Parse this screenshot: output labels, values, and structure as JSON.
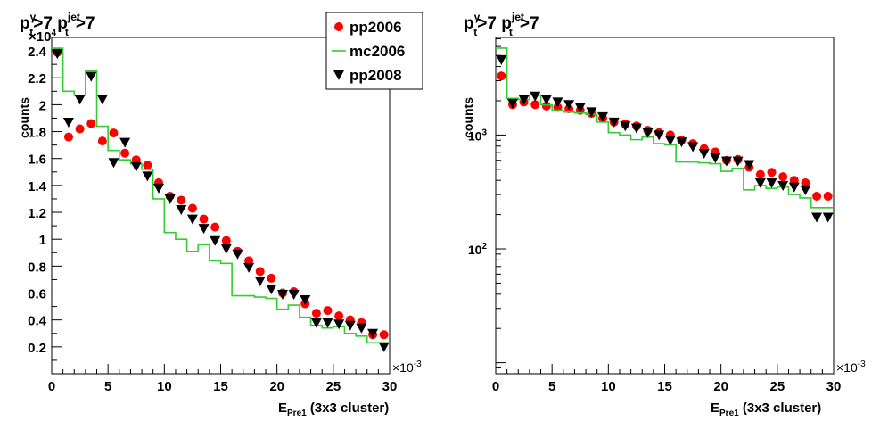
{
  "chart_data": [
    {
      "type": "scatter",
      "title_main": "p",
      "title_sup1": "γ",
      "title_sub1": "t",
      "title_mid": ">7 p",
      "title_sup2": "jet",
      "title_sub2": "t",
      "title_end": ">7",
      "ylabel": "counts",
      "xlabel_main": "E",
      "xlabel_sub": "Pre1",
      "xlabel_rest": " (3x3 cluster)",
      "x_multiplier": "×10",
      "x_multiplier_exp": "-3",
      "y_multiplier": "×10",
      "y_multiplier_exp": "4",
      "y_scale": "linear",
      "xlim": [
        0,
        30
      ],
      "ylim": [
        0,
        2.5
      ],
      "x_ticks": [
        0,
        5,
        10,
        15,
        20,
        25,
        30
      ],
      "x_tick_labels": [
        "0",
        "5",
        "10",
        "15",
        "20",
        "25",
        "30"
      ],
      "y_ticks": [
        0.2,
        0.4,
        0.6,
        0.8,
        1,
        1.2,
        1.4,
        1.6,
        1.8,
        2,
        2.2,
        2.4
      ],
      "y_tick_labels": [
        "0.2",
        "0.4",
        "0.6",
        "0.8",
        "1",
        "1.2",
        "1.4",
        "1.6",
        "1.8",
        "2",
        "2.2",
        "2.4"
      ],
      "legend": {
        "position": "top-right",
        "entries": [
          {
            "name": "pp2006",
            "marker": "circle",
            "color": "#ff0000"
          },
          {
            "name": "mc2006",
            "marker": "line",
            "color": "#33cc33"
          },
          {
            "name": "pp2008",
            "marker": "triangle-down",
            "color": "#000000"
          }
        ]
      },
      "series": [
        {
          "name": "pp2006",
          "marker": "circle",
          "color": "#ff0000",
          "x": [
            0.5,
            1.5,
            2.5,
            3.5,
            4.5,
            5.5,
            6.5,
            7.5,
            8.5,
            9.5,
            10.5,
            11.5,
            12.5,
            13.5,
            14.5,
            15.5,
            16.5,
            17.5,
            18.5,
            19.5,
            20.5,
            21.5,
            22.5,
            23.5,
            24.5,
            25.5,
            26.5,
            27.5,
            28.5,
            29.5
          ],
          "y": [
            2.39,
            1.76,
            1.82,
            1.86,
            1.73,
            1.79,
            1.64,
            1.59,
            1.55,
            1.42,
            1.32,
            1.29,
            1.23,
            1.15,
            1.09,
            0.99,
            0.91,
            0.84,
            0.76,
            0.71,
            0.6,
            0.61,
            0.52,
            0.45,
            0.47,
            0.43,
            0.4,
            0.38,
            0.29,
            0.29
          ]
        },
        {
          "name": "mc2006",
          "marker": "step",
          "color": "#33cc33",
          "edges": [
            0,
            1,
            2,
            3,
            4,
            5,
            6,
            7,
            8,
            9,
            10,
            11,
            12,
            13,
            14,
            15,
            16,
            17,
            18,
            19,
            20,
            21,
            22,
            23,
            24,
            25,
            26,
            27,
            28,
            29,
            30
          ],
          "y": [
            2.42,
            2.1,
            2.07,
            2.25,
            1.84,
            1.66,
            1.59,
            1.56,
            1.52,
            1.3,
            1.05,
            1.0,
            0.91,
            0.96,
            0.84,
            0.82,
            0.58,
            0.58,
            0.57,
            0.56,
            0.48,
            0.51,
            0.42,
            0.36,
            0.34,
            0.35,
            0.3,
            0.28,
            0.23,
            0.23
          ]
        },
        {
          "name": "pp2008",
          "marker": "triangle-down",
          "color": "#000000",
          "x": [
            0.5,
            1.5,
            2.5,
            3.5,
            4.5,
            5.5,
            6.5,
            7.5,
            8.5,
            9.5,
            10.5,
            11.5,
            12.5,
            13.5,
            14.5,
            15.5,
            16.5,
            17.5,
            18.5,
            19.5,
            20.5,
            21.5,
            22.5,
            23.5,
            24.5,
            25.5,
            26.5,
            27.5,
            28.5,
            29.5
          ],
          "y": [
            2.38,
            1.87,
            2.04,
            2.21,
            2.04,
            1.57,
            1.72,
            1.54,
            1.47,
            1.38,
            1.3,
            1.22,
            1.15,
            1.08,
            0.99,
            0.93,
            0.89,
            0.79,
            0.69,
            0.63,
            0.59,
            0.59,
            0.55,
            0.38,
            0.38,
            0.37,
            0.36,
            0.34,
            0.3,
            0.2
          ]
        }
      ]
    },
    {
      "type": "scatter",
      "title_main": "p",
      "title_sup1": "γ",
      "title_sub1": "t",
      "title_mid": ">7 p",
      "title_sup2": "jet",
      "title_sub2": "t",
      "title_end": ">7",
      "ylabel": "counts",
      "xlabel_main": "E",
      "xlabel_sub": "Pre1",
      "xlabel_rest": " (3x3 cluster)",
      "x_multiplier": "×10",
      "x_multiplier_exp": "-3",
      "y_scale": "log",
      "xlim": [
        0,
        30
      ],
      "ylim": [
        8,
        7200
      ],
      "x_ticks": [
        0,
        5,
        10,
        15,
        20,
        25,
        30
      ],
      "x_tick_labels": [
        "0",
        "5",
        "10",
        "15",
        "20",
        "25",
        "30"
      ],
      "y_major_ticks": [
        100,
        1000
      ],
      "y_tick_base": "10",
      "y_tick_exps": [
        "2",
        "3"
      ],
      "series": [
        {
          "name": "pp2006",
          "marker": "circle",
          "color": "#ff0000",
          "x": [
            0.5,
            1.5,
            2.5,
            3.5,
            4.5,
            5.5,
            6.5,
            7.5,
            8.5,
            9.5,
            10.5,
            11.5,
            12.5,
            13.5,
            14.5,
            15.5,
            16.5,
            17.5,
            18.5,
            19.5,
            20.5,
            21.5,
            22.5,
            23.5,
            24.5,
            25.5,
            26.5,
            27.5,
            28.5,
            29.5
          ],
          "y": [
            3300,
            1850,
            1950,
            1850,
            1800,
            1750,
            1700,
            1650,
            1550,
            1400,
            1300,
            1250,
            1200,
            1100,
            1050,
            1000,
            900,
            840,
            760,
            710,
            600,
            610,
            520,
            450,
            470,
            430,
            400,
            380,
            290,
            290
          ]
        },
        {
          "name": "mc2006",
          "marker": "step",
          "color": "#33cc33",
          "edges": [
            0,
            1,
            2,
            3,
            4,
            5,
            6,
            7,
            8,
            9,
            10,
            11,
            12,
            13,
            14,
            15,
            16,
            17,
            18,
            19,
            20,
            21,
            22,
            23,
            24,
            25,
            26,
            27,
            28,
            29,
            30
          ],
          "y": [
            5800,
            2100,
            2050,
            2250,
            1840,
            1650,
            1590,
            1560,
            1520,
            1300,
            1050,
            1000,
            910,
            960,
            840,
            820,
            580,
            580,
            570,
            560,
            480,
            510,
            330,
            360,
            340,
            350,
            300,
            280,
            230,
            230
          ]
        },
        {
          "name": "pp2008",
          "marker": "triangle-down",
          "color": "#000000",
          "x": [
            0.5,
            1.5,
            2.5,
            3.5,
            4.5,
            5.5,
            6.5,
            7.5,
            8.5,
            9.5,
            10.5,
            11.5,
            12.5,
            13.5,
            14.5,
            15.5,
            16.5,
            17.5,
            18.5,
            19.5,
            20.5,
            21.5,
            22.5,
            23.5,
            24.5,
            25.5,
            26.5,
            27.5,
            28.5,
            29.5
          ],
          "y": [
            4600,
            1900,
            2050,
            2200,
            2050,
            1950,
            1850,
            1750,
            1600,
            1450,
            1300,
            1200,
            1150,
            1050,
            1000,
            900,
            870,
            790,
            690,
            630,
            590,
            590,
            550,
            380,
            380,
            360,
            350,
            330,
            190,
            190
          ]
        }
      ]
    }
  ]
}
